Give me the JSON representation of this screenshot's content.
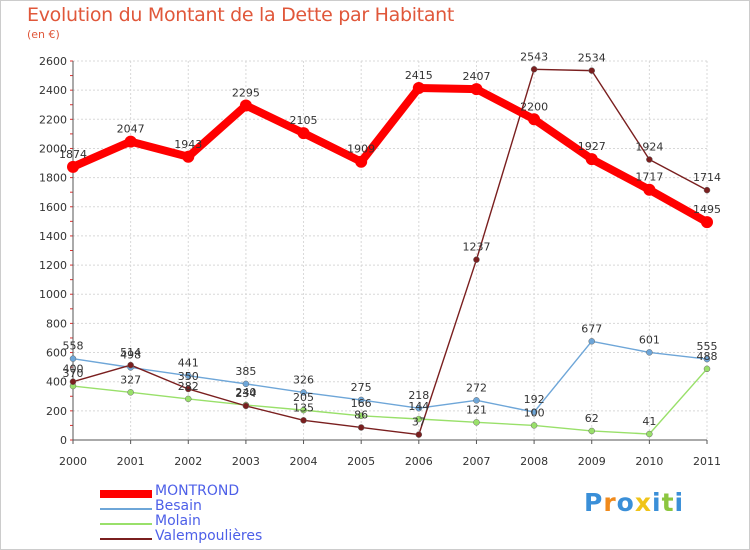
{
  "chart_data": {
    "type": "line",
    "title": "Evolution du Montant de la Dette par Habitant",
    "subtitle": "(en €)",
    "x": [
      "2000",
      "2001",
      "2002",
      "2003",
      "2004",
      "2005",
      "2006",
      "2007",
      "2008",
      "2009",
      "2010",
      "2011"
    ],
    "ylim": [
      0,
      2600
    ],
    "yticks": [
      0,
      200,
      400,
      600,
      800,
      1000,
      1200,
      1400,
      1600,
      1800,
      2000,
      2200,
      2400,
      2600
    ],
    "grid": true,
    "legend_position": "bottom-left",
    "series": [
      {
        "name": "MONTROND",
        "color": "#ff0000",
        "values": [
          1874,
          2047,
          1943,
          2295,
          2105,
          1909,
          2415,
          2407,
          2200,
          1927,
          1717,
          1495
        ]
      },
      {
        "name": "Besain",
        "color": "#6ea6d8",
        "values": [
          558,
          498,
          441,
          385,
          326,
          275,
          218,
          272,
          192,
          677,
          601,
          555
        ]
      },
      {
        "name": "Molain",
        "color": "#99e06a",
        "values": [
          370,
          327,
          282,
          240,
          205,
          166,
          144,
          121,
          100,
          62,
          41,
          488
        ]
      },
      {
        "name": "Valempoulières",
        "color": "#7a1f1f",
        "values": [
          400,
          514,
          350,
          234,
          135,
          86,
          37,
          1237,
          2543,
          2534,
          1924,
          1714
        ]
      }
    ]
  },
  "logo": {
    "letters": [
      "P",
      "r",
      "o",
      "x",
      "i",
      "t",
      "i"
    ],
    "colors": [
      "#3a8fd8",
      "#f08a1c",
      "#3a8fd8",
      "#f0c419",
      "#3a8fd8",
      "#8cc63f",
      "#3a8fd8"
    ]
  }
}
